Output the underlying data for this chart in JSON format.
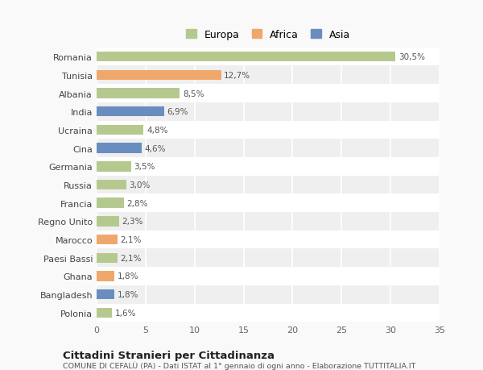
{
  "countries": [
    "Romania",
    "Tunisia",
    "Albania",
    "India",
    "Ucraina",
    "Cina",
    "Germania",
    "Russia",
    "Francia",
    "Regno Unito",
    "Marocco",
    "Paesi Bassi",
    "Ghana",
    "Bangladesh",
    "Polonia"
  ],
  "values": [
    30.5,
    12.7,
    8.5,
    6.9,
    4.8,
    4.6,
    3.5,
    3.0,
    2.8,
    2.3,
    2.1,
    2.1,
    1.8,
    1.8,
    1.6
  ],
  "labels": [
    "30,5%",
    "12,7%",
    "8,5%",
    "6,9%",
    "4,8%",
    "4,6%",
    "3,5%",
    "3,0%",
    "2,8%",
    "2,3%",
    "2,1%",
    "2,1%",
    "1,8%",
    "1,8%",
    "1,6%"
  ],
  "continents": [
    "Europa",
    "Africa",
    "Europa",
    "Asia",
    "Europa",
    "Asia",
    "Europa",
    "Europa",
    "Europa",
    "Europa",
    "Africa",
    "Europa",
    "Africa",
    "Asia",
    "Europa"
  ],
  "colors": {
    "Europa": "#b5c98e",
    "Africa": "#f0a76b",
    "Asia": "#6a8dbf"
  },
  "row_colors": [
    "#ffffff",
    "#efefef"
  ],
  "xlim": [
    0,
    35
  ],
  "xticks": [
    0,
    5,
    10,
    15,
    20,
    25,
    30,
    35
  ],
  "background_color": "#f9f9f9",
  "plot_bg": "#f9f9f9",
  "title": "Cittadini Stranieri per Cittadinanza",
  "subtitle": "COMUNE DI CEFALÙ (PA) - Dati ISTAT al 1° gennaio di ogni anno - Elaborazione TUTTITALIA.IT",
  "grid_color": "#ffffff",
  "bar_height": 0.55,
  "label_fontsize": 7.5,
  "ytick_fontsize": 8.0,
  "xtick_fontsize": 8.0
}
